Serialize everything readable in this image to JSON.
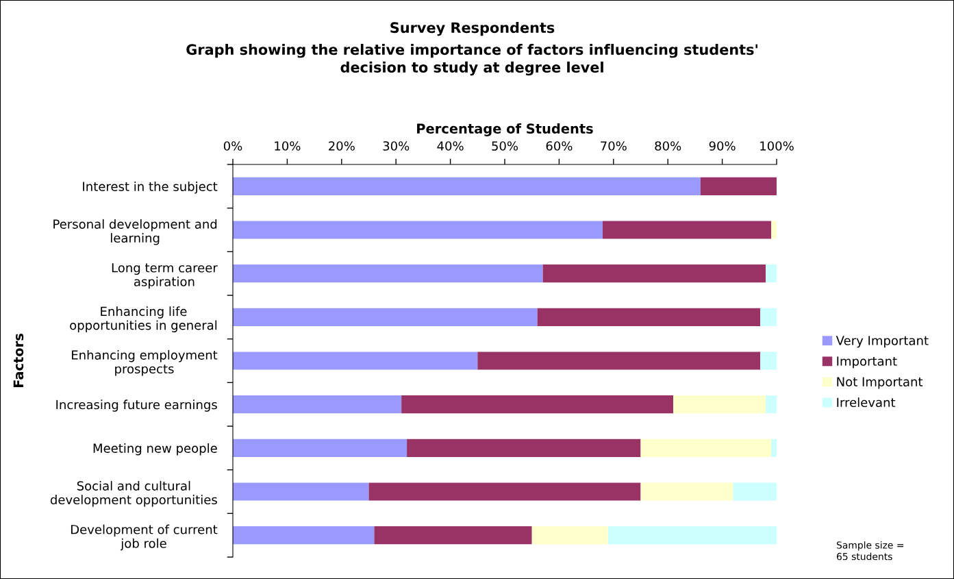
{
  "chart_data": {
    "type": "bar",
    "orientation": "horizontal",
    "stacked": true,
    "title": "Survey Respondents",
    "subtitle": "Graph showing the relative importance of factors influencing students'\ndecision to study at degree level",
    "xlabel": "Percentage of Students",
    "ylabel": "Factors",
    "categories": [
      "Interest in the subject",
      "Personal development and\nlearning",
      "Long term career\naspiration",
      "Enhancing life\nopportunities in general",
      "Enhancing employment\nprospects",
      "Increasing future earnings",
      "Meeting new people",
      "Social and cultural\ndevelopment opportunities",
      "Development of current\njob role"
    ],
    "series": [
      {
        "name": "Very Important",
        "color": "#9999ff",
        "values": [
          86,
          68,
          57,
          56,
          45,
          31,
          32,
          25,
          26
        ]
      },
      {
        "name": "Important",
        "color": "#993366",
        "values": [
          14,
          31,
          41,
          41,
          52,
          50,
          43,
          50,
          29
        ]
      },
      {
        "name": "Not Important",
        "color": "#ffffcc",
        "values": [
          0,
          1,
          0,
          0,
          0,
          17,
          24,
          17,
          14
        ]
      },
      {
        "name": "Irrelevant",
        "color": "#ccffff",
        "values": [
          0,
          0,
          2,
          3,
          3,
          2,
          1,
          8,
          31
        ]
      }
    ],
    "xlim": [
      0,
      100
    ],
    "xticks": [
      {
        "value": 0,
        "label": "0%"
      },
      {
        "value": 10,
        "label": "10%"
      },
      {
        "value": 20,
        "label": "20%"
      },
      {
        "value": 30,
        "label": "30%"
      },
      {
        "value": 40,
        "label": "40%"
      },
      {
        "value": 50,
        "label": "50%"
      },
      {
        "value": 60,
        "label": "60%"
      },
      {
        "value": 70,
        "label": "70%"
      },
      {
        "value": 80,
        "label": "80%"
      },
      {
        "value": 90,
        "label": "90%"
      },
      {
        "value": 100,
        "label": "100%"
      }
    ],
    "grid": false,
    "legend": "right",
    "annotations": [
      "Sample size =\n65 students"
    ]
  }
}
